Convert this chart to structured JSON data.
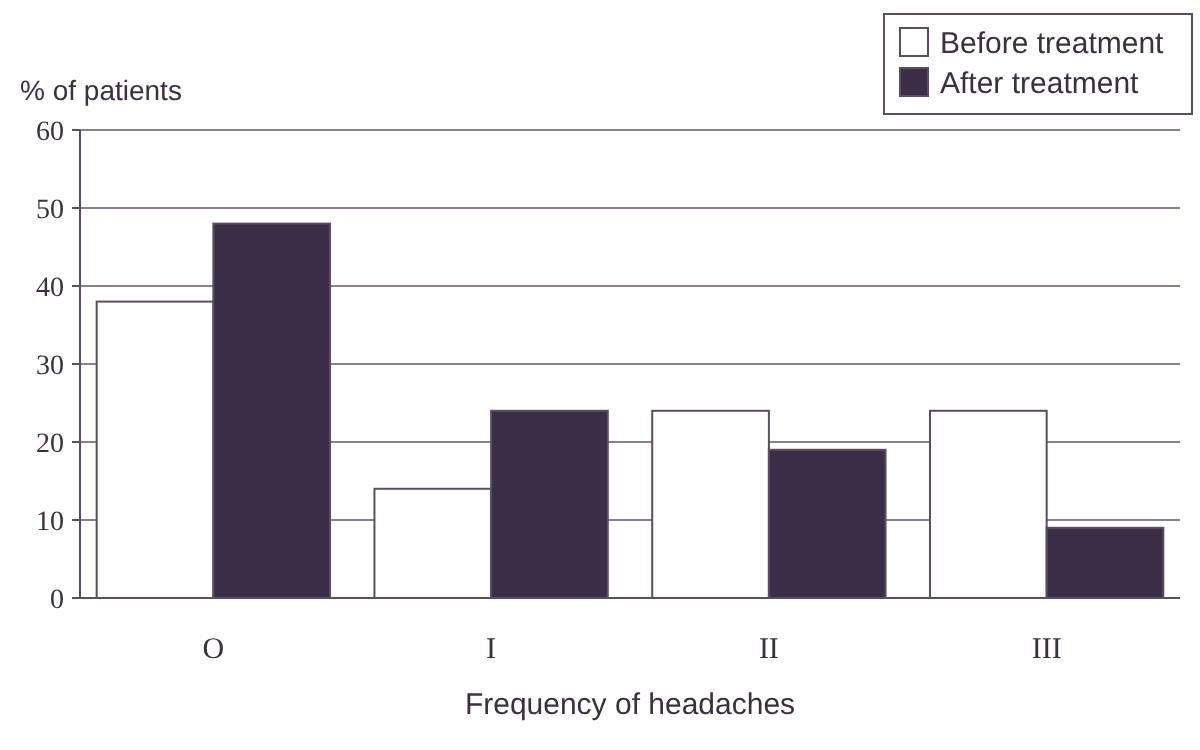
{
  "chart_data": {
    "type": "bar",
    "ylabel": "% of patients",
    "xlabel": "Frequency of headaches",
    "categories": [
      "O",
      "I",
      "II",
      "III"
    ],
    "series": [
      {
        "name": "Before treatment",
        "color": "#ffffff",
        "values": [
          38,
          14,
          24,
          24
        ]
      },
      {
        "name": "After treatment",
        "color": "#3b2f47",
        "values": [
          48,
          24,
          19,
          9
        ]
      }
    ],
    "ylim": [
      0,
      60
    ],
    "yticks": [
      0,
      10,
      20,
      30,
      40,
      50,
      60
    ],
    "grid": "y",
    "legend": "top right"
  }
}
